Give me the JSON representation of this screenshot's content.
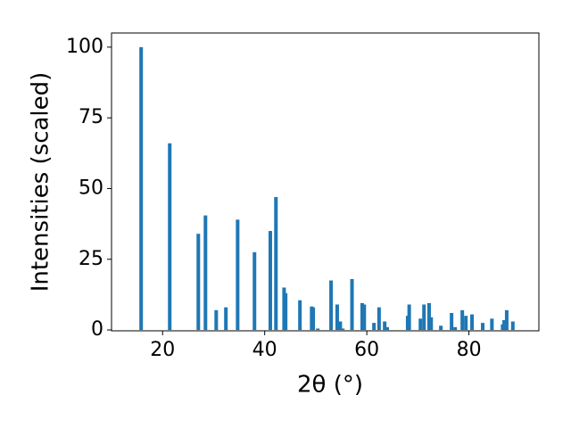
{
  "chart_data": {
    "type": "bar",
    "xlabel": "2θ (°)",
    "ylabel": "Intensities (scaled)",
    "color": "#1f77b4",
    "x": [
      15.8,
      21.4,
      27.0,
      28.4,
      30.5,
      32.4,
      34.7,
      38.0,
      41.1,
      42.2,
      43.8,
      44.1,
      46.9,
      49.2,
      49.5,
      50.4,
      53.0,
      54.2,
      54.8,
      55.3,
      57.1,
      59.1,
      59.5,
      61.4,
      62.4,
      63.5,
      64.0,
      68.0,
      68.3,
      70.5,
      71.2,
      72.2,
      72.6,
      74.5,
      76.6,
      77.3,
      78.7,
      79.4,
      80.6,
      82.7,
      84.5,
      86.6,
      86.9,
      87.4,
      88.6
    ],
    "values": [
      100,
      66,
      34,
      40.5,
      7,
      8,
      39,
      27.5,
      35,
      47,
      15,
      13,
      10.5,
      8.3,
      8,
      0.5,
      17.5,
      9,
      3,
      0.5,
      18,
      9.5,
      9,
      2.5,
      8,
      3,
      1,
      5,
      9,
      4,
      9,
      9.5,
      4.5,
      1.5,
      6,
      1,
      7,
      5,
      5.5,
      2.5,
      4,
      2,
      3.5,
      7,
      3
    ],
    "xlim": [
      10,
      93.7
    ],
    "ylim": [
      -0.3,
      105
    ],
    "xticks": [
      20,
      40,
      60,
      80
    ],
    "yticks": [
      0,
      25,
      50,
      75,
      100
    ]
  }
}
